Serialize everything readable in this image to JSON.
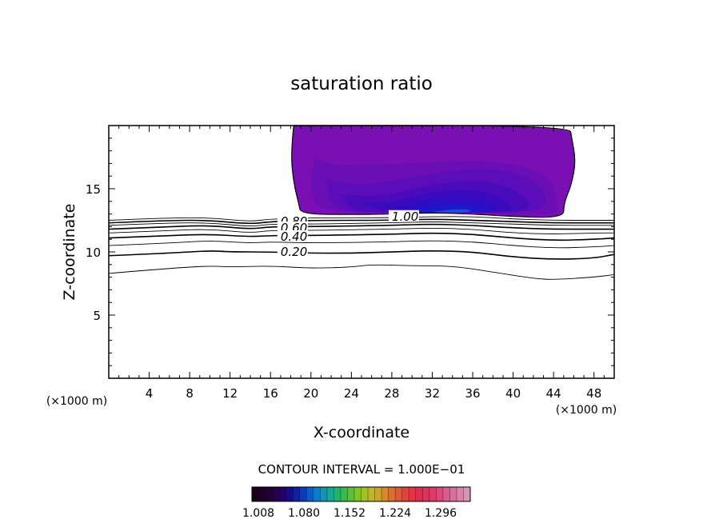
{
  "chart_data": {
    "type": "contour",
    "title": "saturation ratio",
    "xlabel": "X-coordinate",
    "ylabel": "Z-coordinate",
    "x_unit": "(×1000 m)",
    "z_unit": "(×1000 m)",
    "xlim": [
      0,
      50
    ],
    "ylim": [
      0,
      20
    ],
    "x_ticks": [
      4,
      8,
      12,
      16,
      20,
      24,
      28,
      32,
      36,
      40,
      44,
      48
    ],
    "y_ticks": [
      5,
      10,
      15
    ],
    "contour_interval_text": "CONTOUR INTERVAL = 1.000E−01",
    "contour_labels": [
      {
        "text": "1.00",
        "x": 28.0,
        "z": 12.8
      },
      {
        "text": "0.80",
        "x": 17.0,
        "z": 12.4
      },
      {
        "text": "0.60",
        "x": 17.0,
        "z": 11.9
      },
      {
        "text": "0.40",
        "x": 17.0,
        "z": 11.2
      },
      {
        "text": "0.20",
        "x": 17.0,
        "z": 10.0
      }
    ],
    "contour_lines": [
      {
        "level": 0.1,
        "points": [
          [
            0,
            8.3
          ],
          [
            6,
            8.7
          ],
          [
            10,
            8.9
          ],
          [
            12,
            8.8
          ],
          [
            16,
            8.9
          ],
          [
            20,
            8.7
          ],
          [
            24,
            8.8
          ],
          [
            26,
            9.0
          ],
          [
            30,
            8.9
          ],
          [
            34,
            8.9
          ],
          [
            38,
            8.4
          ],
          [
            42,
            7.9
          ],
          [
            44,
            7.8
          ],
          [
            48,
            8.0
          ],
          [
            50,
            8.2
          ]
        ]
      },
      {
        "level": 0.2,
        "points": [
          [
            0,
            9.7
          ],
          [
            6,
            9.9
          ],
          [
            10,
            10.1
          ],
          [
            12,
            10.0
          ],
          [
            16,
            10.0
          ],
          [
            20,
            9.9
          ],
          [
            24,
            9.9
          ],
          [
            28,
            10.0
          ],
          [
            32,
            10.1
          ],
          [
            36,
            10.0
          ],
          [
            40,
            9.6
          ],
          [
            44,
            9.4
          ],
          [
            48,
            9.5
          ],
          [
            50,
            9.8
          ]
        ]
      },
      {
        "level": 0.3,
        "points": [
          [
            0,
            10.5
          ],
          [
            6,
            10.7
          ],
          [
            10,
            10.9
          ],
          [
            14,
            10.7
          ],
          [
            16,
            10.8
          ],
          [
            20,
            10.7
          ],
          [
            28,
            10.8
          ],
          [
            32,
            10.9
          ],
          [
            36,
            10.8
          ],
          [
            40,
            10.5
          ],
          [
            44,
            10.3
          ],
          [
            48,
            10.4
          ],
          [
            50,
            10.5
          ]
        ]
      },
      {
        "level": 0.4,
        "points": [
          [
            0,
            11.1
          ],
          [
            6,
            11.3
          ],
          [
            10,
            11.4
          ],
          [
            14,
            11.2
          ],
          [
            16,
            11.3
          ],
          [
            20,
            11.3
          ],
          [
            28,
            11.4
          ],
          [
            32,
            11.5
          ],
          [
            36,
            11.4
          ],
          [
            40,
            11.1
          ],
          [
            44,
            10.9
          ],
          [
            48,
            11.0
          ],
          [
            50,
            11.1
          ]
        ]
      },
      {
        "level": 0.5,
        "points": [
          [
            0,
            11.5
          ],
          [
            6,
            11.7
          ],
          [
            10,
            11.8
          ],
          [
            14,
            11.5
          ],
          [
            16,
            11.7
          ],
          [
            20,
            11.7
          ],
          [
            28,
            11.8
          ],
          [
            32,
            11.9
          ],
          [
            36,
            11.8
          ],
          [
            40,
            11.5
          ],
          [
            44,
            11.4
          ],
          [
            48,
            11.5
          ],
          [
            50,
            11.5
          ]
        ]
      },
      {
        "level": 0.6,
        "points": [
          [
            0,
            11.8
          ],
          [
            6,
            12.0
          ],
          [
            10,
            12.1
          ],
          [
            14,
            11.8
          ],
          [
            16,
            12.0
          ],
          [
            20,
            12.0
          ],
          [
            28,
            12.1
          ],
          [
            32,
            12.2
          ],
          [
            36,
            12.1
          ],
          [
            40,
            11.9
          ],
          [
            44,
            11.8
          ],
          [
            48,
            11.8
          ],
          [
            50,
            11.8
          ]
        ]
      },
      {
        "level": 0.7,
        "points": [
          [
            0,
            12.1
          ],
          [
            6,
            12.3
          ],
          [
            10,
            12.3
          ],
          [
            14,
            12.0
          ],
          [
            16,
            12.2
          ],
          [
            20,
            12.2
          ],
          [
            28,
            12.3
          ],
          [
            32,
            12.4
          ],
          [
            36,
            12.3
          ],
          [
            40,
            12.2
          ],
          [
            44,
            12.1
          ],
          [
            48,
            12.1
          ],
          [
            50,
            12.1
          ]
        ]
      },
      {
        "level": 0.8,
        "points": [
          [
            0,
            12.3
          ],
          [
            6,
            12.5
          ],
          [
            10,
            12.5
          ],
          [
            14,
            12.2
          ],
          [
            16,
            12.4
          ],
          [
            20,
            12.5
          ],
          [
            28,
            12.5
          ],
          [
            32,
            12.6
          ],
          [
            36,
            12.5
          ],
          [
            40,
            12.4
          ],
          [
            44,
            12.3
          ],
          [
            48,
            12.3
          ],
          [
            50,
            12.3
          ]
        ]
      },
      {
        "level": 0.9,
        "points": [
          [
            0,
            12.5
          ],
          [
            6,
            12.7
          ],
          [
            10,
            12.7
          ],
          [
            14,
            12.4
          ],
          [
            16,
            12.6
          ],
          [
            20,
            12.7
          ],
          [
            28,
            12.7
          ],
          [
            32,
            12.8
          ],
          [
            36,
            12.8
          ],
          [
            40,
            12.6
          ],
          [
            44,
            12.5
          ],
          [
            48,
            12.5
          ],
          [
            50,
            12.5
          ]
        ]
      }
    ],
    "supersaturated_region_outline": [
      [
        18.3,
        20
      ],
      [
        18.0,
        17.8
      ],
      [
        18.3,
        15.4
      ],
      [
        18.8,
        13.8
      ],
      [
        19.0,
        13.0
      ],
      [
        24,
        12.95
      ],
      [
        28,
        13.0
      ],
      [
        32,
        13.1
      ],
      [
        36,
        13.0
      ],
      [
        40,
        12.8
      ],
      [
        45,
        12.7
      ],
      [
        45.0,
        13.8
      ],
      [
        45.8,
        15.4
      ],
      [
        46.2,
        17.2
      ],
      [
        45.8,
        19.0
      ],
      [
        45.6,
        20
      ]
    ],
    "filled_layers": [
      {
        "level": 1.008,
        "color": "#7a10b4",
        "points": [
          [
            18.3,
            20
          ],
          [
            18.0,
            17.8
          ],
          [
            18.3,
            15.4
          ],
          [
            18.8,
            13.8
          ],
          [
            19.0,
            13.0
          ],
          [
            24,
            12.95
          ],
          [
            28,
            13.0
          ],
          [
            32,
            13.1
          ],
          [
            36,
            13.0
          ],
          [
            40,
            12.8
          ],
          [
            45,
            12.7
          ],
          [
            45.0,
            13.8
          ],
          [
            45.8,
            15.4
          ],
          [
            46.2,
            17.2
          ],
          [
            45.8,
            19.0
          ],
          [
            45.6,
            20
          ]
        ]
      },
      {
        "level": 1.03,
        "color": "#6a0eb6",
        "points": [
          [
            20.5,
            17.5
          ],
          [
            22,
            16.8
          ],
          [
            26,
            16.9
          ],
          [
            30,
            17.0
          ],
          [
            34,
            17.2
          ],
          [
            38,
            17.2
          ],
          [
            42,
            16.6
          ],
          [
            44,
            15.6
          ],
          [
            44.5,
            13.4
          ],
          [
            44,
            12.9
          ],
          [
            36,
            13.1
          ],
          [
            28,
            13.1
          ],
          [
            21,
            13.2
          ],
          [
            20,
            14.5
          ],
          [
            20,
            16.5
          ]
        ]
      },
      {
        "level": 1.05,
        "color": "#5a0db8",
        "points": [
          [
            21.5,
            15.8
          ],
          [
            24,
            15.2
          ],
          [
            28,
            15.6
          ],
          [
            32,
            16.2
          ],
          [
            36,
            16.6
          ],
          [
            40,
            16.4
          ],
          [
            43,
            15.2
          ],
          [
            43.5,
            13.2
          ],
          [
            36,
            13.1
          ],
          [
            28,
            13.1
          ],
          [
            22,
            13.2
          ]
        ]
      },
      {
        "level": 1.08,
        "color": "#4a0cba",
        "points": [
          [
            23,
            14.6
          ],
          [
            26,
            14.2
          ],
          [
            30,
            15.0
          ],
          [
            34,
            15.6
          ],
          [
            38,
            15.6
          ],
          [
            41,
            14.6
          ],
          [
            42,
            13.2
          ],
          [
            36,
            13.1
          ],
          [
            28,
            13.1
          ],
          [
            24,
            13.2
          ]
        ]
      },
      {
        "level": 1.11,
        "color": "#3a0bbe",
        "points": [
          [
            25,
            13.8
          ],
          [
            28,
            13.9
          ],
          [
            32,
            14.8
          ],
          [
            36,
            15.0
          ],
          [
            39,
            14.3
          ],
          [
            40.5,
            13.2
          ],
          [
            36,
            13.1
          ],
          [
            28,
            13.1
          ]
        ]
      },
      {
        "level": 1.14,
        "color": "#2a0dc4",
        "points": [
          [
            28,
            13.4
          ],
          [
            31,
            14.0
          ],
          [
            34,
            14.4
          ],
          [
            37,
            14.1
          ],
          [
            39,
            13.3
          ],
          [
            36,
            13.1
          ],
          [
            30,
            13.1
          ]
        ]
      },
      {
        "level": 1.17,
        "color": "#1a1acc",
        "points": [
          [
            30,
            13.2
          ],
          [
            32,
            13.6
          ],
          [
            35,
            13.8
          ],
          [
            37.5,
            13.4
          ],
          [
            36,
            13.1
          ],
          [
            32,
            13.1
          ]
        ]
      },
      {
        "level": 1.2,
        "color": "#1e4cdc",
        "points": [
          [
            32,
            13.15
          ],
          [
            34,
            13.4
          ],
          [
            36,
            13.35
          ],
          [
            35.5,
            13.1
          ],
          [
            33,
            13.1
          ]
        ]
      }
    ],
    "colorbar": {
      "tick_labels": [
        "1.008",
        "1.080",
        "1.152",
        "1.224",
        "1.296"
      ],
      "colors": [
        "#1a0018",
        "#200028",
        "#240038",
        "#28004c",
        "#220066",
        "#1a0a88",
        "#1020a6",
        "#0c3cbc",
        "#0c5cc8",
        "#0a7ccc",
        "#0a98b8",
        "#12aa94",
        "#20b46c",
        "#36bc4c",
        "#5ac034",
        "#7ec428",
        "#a0c026",
        "#bcb828",
        "#cca42c",
        "#d68a30",
        "#dc6e34",
        "#e05838",
        "#e2443c",
        "#e33642",
        "#e22c4c",
        "#e0305c",
        "#de3a6c",
        "#dc4a7c",
        "#da5c8c",
        "#d8709a",
        "#d684a8",
        "#d498b4"
      ]
    }
  }
}
